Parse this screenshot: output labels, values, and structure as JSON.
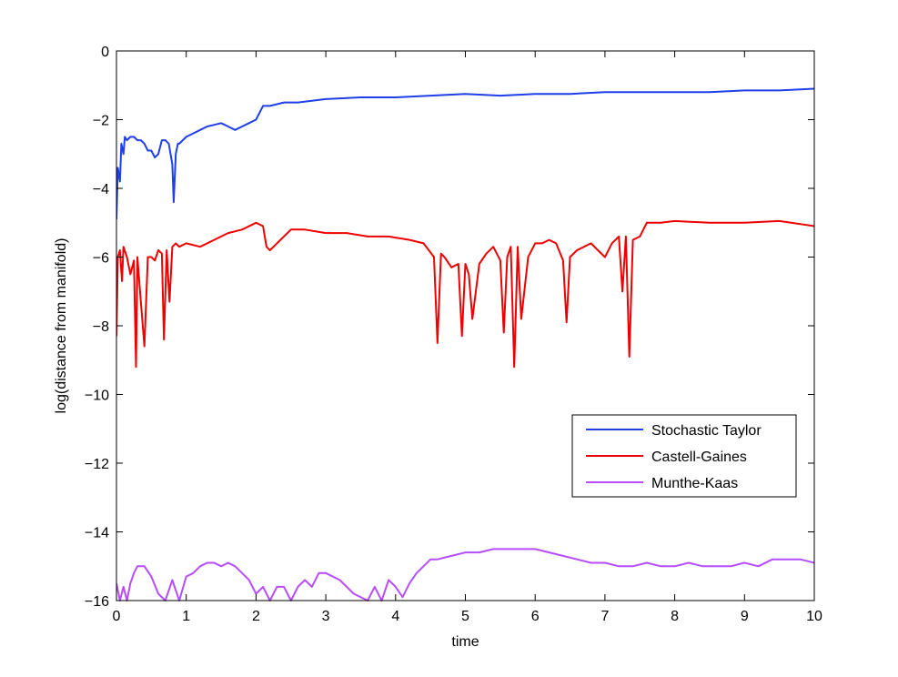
{
  "chart_data": {
    "type": "line",
    "title": "",
    "xlabel": "time",
    "ylabel": "log(distance from manifold)",
    "xlim": [
      0,
      10
    ],
    "ylim": [
      -16,
      0
    ],
    "xticks": [
      "0",
      "1",
      "2",
      "3",
      "4",
      "5",
      "6",
      "7",
      "8",
      "9",
      "10"
    ],
    "yticks": [
      "0",
      "−2",
      "−4",
      "−6",
      "−8",
      "−10",
      "−12",
      "−14",
      "−16"
    ],
    "grid": false,
    "legend_position": "lower-right",
    "series": [
      {
        "name": "Stochastic Taylor",
        "color": "#1f3fe8",
        "x": [
          0,
          0.02,
          0.05,
          0.07,
          0.1,
          0.12,
          0.15,
          0.2,
          0.25,
          0.3,
          0.35,
          0.4,
          0.45,
          0.5,
          0.55,
          0.6,
          0.65,
          0.7,
          0.75,
          0.8,
          0.82,
          0.85,
          0.88,
          0.9,
          0.95,
          1.0,
          1.1,
          1.2,
          1.3,
          1.4,
          1.5,
          1.6,
          1.7,
          1.8,
          1.9,
          2.0,
          2.1,
          2.2,
          2.4,
          2.6,
          2.8,
          3.0,
          3.5,
          4.0,
          4.5,
          5.0,
          5.5,
          6.0,
          6.5,
          7.0,
          7.5,
          8.0,
          8.5,
          9.0,
          9.5,
          10.0
        ],
        "y": [
          -4.9,
          -3.4,
          -3.8,
          -2.7,
          -3.0,
          -2.5,
          -2.6,
          -2.5,
          -2.5,
          -2.6,
          -2.6,
          -2.7,
          -2.9,
          -2.9,
          -3.1,
          -3.0,
          -2.6,
          -2.6,
          -2.7,
          -3.3,
          -4.4,
          -3.0,
          -2.7,
          -2.7,
          -2.6,
          -2.5,
          -2.4,
          -2.3,
          -2.2,
          -2.15,
          -2.1,
          -2.2,
          -2.3,
          -2.2,
          -2.1,
          -2.0,
          -1.6,
          -1.6,
          -1.5,
          -1.5,
          -1.45,
          -1.4,
          -1.35,
          -1.35,
          -1.3,
          -1.25,
          -1.3,
          -1.25,
          -1.25,
          -1.2,
          -1.2,
          -1.2,
          -1.2,
          -1.15,
          -1.15,
          -1.1
        ]
      },
      {
        "name": "Castell-Gaines",
        "color": "#ee0000",
        "x": [
          0,
          0.02,
          0.05,
          0.08,
          0.1,
          0.15,
          0.2,
          0.25,
          0.28,
          0.3,
          0.35,
          0.4,
          0.45,
          0.5,
          0.55,
          0.6,
          0.65,
          0.68,
          0.72,
          0.76,
          0.8,
          0.85,
          0.9,
          1.0,
          1.2,
          1.4,
          1.6,
          1.8,
          2.0,
          2.1,
          2.15,
          2.2,
          2.3,
          2.5,
          2.7,
          3.0,
          3.3,
          3.6,
          3.9,
          4.2,
          4.4,
          4.55,
          4.6,
          4.65,
          4.7,
          4.8,
          4.9,
          4.95,
          5.0,
          5.05,
          5.1,
          5.2,
          5.3,
          5.4,
          5.5,
          5.55,
          5.6,
          5.65,
          5.7,
          5.75,
          5.8,
          5.9,
          6.0,
          6.1,
          6.2,
          6.3,
          6.4,
          6.45,
          6.5,
          6.6,
          6.7,
          6.8,
          6.9,
          7.0,
          7.1,
          7.2,
          7.25,
          7.3,
          7.35,
          7.4,
          7.5,
          7.6,
          7.8,
          8.0,
          8.5,
          9.0,
          9.5,
          10.0
        ],
        "y": [
          -8.3,
          -6.0,
          -5.8,
          -6.7,
          -5.7,
          -6.0,
          -6.5,
          -6.1,
          -9.2,
          -6.0,
          -7.3,
          -8.6,
          -6.0,
          -6.0,
          -6.1,
          -5.8,
          -5.9,
          -8.4,
          -5.8,
          -7.3,
          -5.7,
          -5.6,
          -5.7,
          -5.6,
          -5.7,
          -5.5,
          -5.3,
          -5.2,
          -5.0,
          -5.1,
          -5.7,
          -5.8,
          -5.6,
          -5.2,
          -5.2,
          -5.3,
          -5.3,
          -5.4,
          -5.4,
          -5.5,
          -5.6,
          -6.0,
          -8.5,
          -5.9,
          -6.0,
          -6.3,
          -6.2,
          -8.3,
          -6.2,
          -6.5,
          -7.8,
          -6.2,
          -5.9,
          -5.7,
          -6.1,
          -8.2,
          -6.0,
          -5.7,
          -9.2,
          -5.7,
          -7.8,
          -6.0,
          -5.6,
          -5.6,
          -5.5,
          -5.6,
          -6.1,
          -7.9,
          -6.0,
          -5.8,
          -5.7,
          -5.6,
          -5.8,
          -6.0,
          -5.6,
          -5.4,
          -7.0,
          -5.4,
          -8.9,
          -5.5,
          -5.4,
          -5.0,
          -5.0,
          -4.95,
          -5.0,
          -5.0,
          -4.95,
          -5.1
        ]
      },
      {
        "name": "Munthe-Kaas",
        "color": "#b64dff",
        "x": [
          0,
          0.05,
          0.1,
          0.15,
          0.2,
          0.25,
          0.3,
          0.4,
          0.5,
          0.6,
          0.7,
          0.8,
          0.9,
          1.0,
          1.1,
          1.2,
          1.3,
          1.4,
          1.5,
          1.6,
          1.7,
          1.8,
          1.9,
          2.0,
          2.1,
          2.2,
          2.3,
          2.4,
          2.5,
          2.6,
          2.7,
          2.8,
          2.9,
          3.0,
          3.2,
          3.4,
          3.6,
          3.7,
          3.8,
          3.9,
          4.0,
          4.1,
          4.2,
          4.3,
          4.4,
          4.5,
          4.6,
          4.8,
          5.0,
          5.2,
          5.4,
          5.6,
          5.8,
          6.0,
          6.2,
          6.4,
          6.6,
          6.8,
          7.0,
          7.2,
          7.4,
          7.6,
          7.8,
          8.0,
          8.2,
          8.4,
          8.6,
          8.8,
          9.0,
          9.2,
          9.4,
          9.6,
          9.8,
          10.0
        ],
        "y": [
          -15.5,
          -16.0,
          -15.6,
          -16.0,
          -15.5,
          -15.2,
          -15.0,
          -15.0,
          -15.3,
          -15.8,
          -16.0,
          -15.4,
          -16.0,
          -15.3,
          -15.2,
          -15.0,
          -14.9,
          -14.9,
          -15.0,
          -14.9,
          -15.0,
          -15.2,
          -15.4,
          -15.8,
          -15.6,
          -16.0,
          -15.6,
          -15.6,
          -16.0,
          -15.6,
          -15.4,
          -15.6,
          -15.2,
          -15.2,
          -15.4,
          -15.8,
          -16.0,
          -15.6,
          -16.0,
          -15.4,
          -15.6,
          -15.9,
          -15.5,
          -15.2,
          -15.0,
          -14.8,
          -14.8,
          -14.7,
          -14.6,
          -14.6,
          -14.5,
          -14.5,
          -14.5,
          -14.5,
          -14.6,
          -14.7,
          -14.8,
          -14.9,
          -14.9,
          -15.0,
          -15.0,
          -14.9,
          -15.0,
          -15.0,
          -14.9,
          -15.0,
          -15.0,
          -15.0,
          -14.9,
          -15.0,
          -14.8,
          -14.8,
          -14.8,
          -14.9
        ]
      }
    ]
  }
}
